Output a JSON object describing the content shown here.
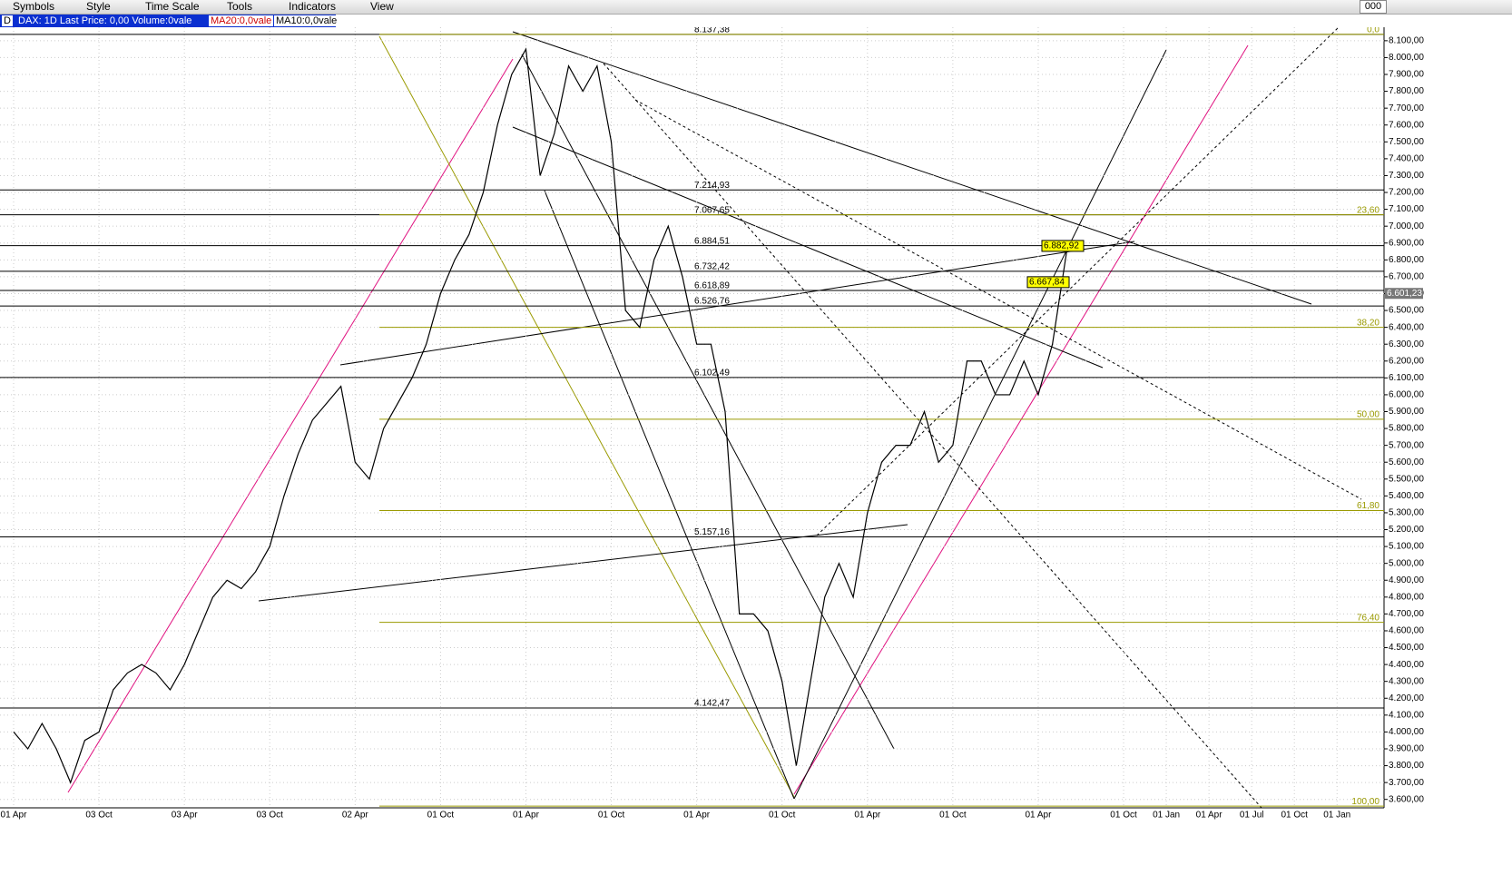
{
  "menu": [
    "Symbols",
    "Style",
    "Time Scale",
    "Tools",
    "Indicators",
    "View"
  ],
  "counter": "000",
  "header": {
    "symbol": "DAX: 1D Last Price: 0,00 Volume:0vale",
    "ma20": "MA20:0,0vale",
    "ma10": "MA10:0,0vale"
  },
  "chart_data": {
    "type": "line",
    "categories": [
      "01 Apr",
      null,
      null,
      null,
      null,
      null,
      "03 Oct",
      null,
      null,
      null,
      null,
      null,
      "03 Apr",
      null,
      null,
      null,
      null,
      null,
      "03 Oct",
      null,
      null,
      null,
      null,
      null,
      "02 Apr",
      null,
      null,
      null,
      null,
      null,
      "01 Oct",
      null,
      null,
      null,
      null,
      null,
      "01 Apr",
      null,
      null,
      null,
      null,
      null,
      "01 Oct",
      null,
      null,
      null,
      null,
      null,
      "01 Apr",
      null,
      null,
      null,
      null,
      null,
      "01 Oct",
      null,
      null,
      null,
      null,
      null,
      "01 Apr",
      null,
      null,
      null,
      null,
      null,
      "01 Oct",
      null,
      null,
      null,
      null,
      null,
      "01 Apr",
      null,
      null,
      null,
      null,
      null,
      "01 Oct",
      null,
      null,
      "01 Jan",
      null,
      null,
      "01 Apr",
      null,
      null,
      "01 Jul",
      null,
      null,
      "01 Oct",
      null,
      null,
      "01 Jan"
    ],
    "series": [
      {
        "color": "#000000",
        "values": [
          4000,
          3900,
          4050,
          3900,
          3700,
          3950,
          4000,
          4250,
          4350,
          4400,
          4350,
          4250,
          4400,
          4600,
          4800,
          4900,
          4850,
          4950,
          5100,
          5400,
          5650,
          5850,
          5950,
          6050,
          5600,
          5500,
          5800,
          5950,
          6100,
          6300,
          6600,
          6800,
          6950,
          7200,
          7600,
          7900,
          8050,
          7300,
          7550,
          7950,
          7800,
          7950,
          7500,
          6500,
          6400,
          6800,
          7000,
          6700,
          6300,
          6300,
          5900,
          4700,
          4700,
          4600,
          4300,
          3800,
          4300,
          4800,
          5000,
          4800,
          5300,
          5600,
          5700,
          5700,
          5900,
          5600,
          5700,
          6200,
          6200,
          6000,
          6000,
          6200,
          6000,
          6300,
          6850,
          null,
          null,
          null,
          null,
          null,
          null,
          null,
          null,
          null,
          null,
          null,
          null,
          null,
          null,
          null,
          null,
          null,
          null,
          null
        ]
      }
    ],
    "ylim": [
      3550,
      8180
    ],
    "yticks": [
      {
        "value": 3600,
        "label": "3.600,00"
      },
      {
        "value": 3700,
        "label": "3.700,00"
      },
      {
        "value": 3800,
        "label": "3.800,00"
      },
      {
        "value": 3900,
        "label": "3.900,00"
      },
      {
        "value": 4000,
        "label": "4.000,00"
      },
      {
        "value": 4100,
        "label": "4.100,00"
      },
      {
        "value": 4200,
        "label": "4.200,00"
      },
      {
        "value": 4300,
        "label": "4.300,00"
      },
      {
        "value": 4400,
        "label": "4.400,00"
      },
      {
        "value": 4500,
        "label": "4.500,00"
      },
      {
        "value": 4600,
        "label": "4.600,00"
      },
      {
        "value": 4700,
        "label": "4.700,00"
      },
      {
        "value": 4800,
        "label": "4.800,00"
      },
      {
        "value": 4900,
        "label": "4.900,00"
      },
      {
        "value": 5000,
        "label": "5.000,00"
      },
      {
        "value": 5100,
        "label": "5.100,00"
      },
      {
        "value": 5200,
        "label": "5.200,00"
      },
      {
        "value": 5300,
        "label": "5.300,00"
      },
      {
        "value": 5400,
        "label": "5.400,00"
      },
      {
        "value": 5500,
        "label": "5.500,00"
      },
      {
        "value": 5600,
        "label": "5.600,00"
      },
      {
        "value": 5700,
        "label": "5.700,00"
      },
      {
        "value": 5800,
        "label": "5.800,00"
      },
      {
        "value": 5900,
        "label": "5.900,00"
      },
      {
        "value": 6000,
        "label": "6.000,00"
      },
      {
        "value": 6100,
        "label": "6.100,00"
      },
      {
        "value": 6200,
        "label": "6.200,00"
      },
      {
        "value": 6300,
        "label": "6.300,00"
      },
      {
        "value": 6400,
        "label": "6.400,00"
      },
      {
        "value": 6500,
        "label": "6.500,00"
      },
      {
        "value": 6600,
        "label": "6.600,00"
      },
      {
        "value": 6700,
        "label": "6.700,00"
      },
      {
        "value": 6800,
        "label": "6.800,00"
      },
      {
        "value": 6900,
        "label": "6.900,00"
      },
      {
        "value": 7000,
        "label": "7.000,00"
      },
      {
        "value": 7100,
        "label": "7.100,00"
      },
      {
        "value": 7200,
        "label": "7.200,00"
      },
      {
        "value": 7300,
        "label": "7.300,00"
      },
      {
        "value": 7400,
        "label": "7.400,00"
      },
      {
        "value": 7500,
        "label": "7.500,00"
      },
      {
        "value": 7600,
        "label": "7.600,00"
      },
      {
        "value": 7700,
        "label": "7.700,00"
      },
      {
        "value": 7800,
        "label": "7.800,00"
      },
      {
        "value": 7900,
        "label": "7.900,00"
      },
      {
        "value": 8000,
        "label": "8.000,00"
      },
      {
        "value": 8100,
        "label": "8.100,00"
      }
    ],
    "grid": true,
    "levels": [
      {
        "value": 8137.38,
        "label": "8.137,38"
      },
      {
        "value": 7214.93,
        "label": "7.214,93"
      },
      {
        "value": 7067.65,
        "label": "7.067,65"
      },
      {
        "value": 6884.51,
        "label": "6.884,51"
      },
      {
        "value": 6732.42,
        "label": "6.732,42"
      },
      {
        "value": 6618.89,
        "label": "6.618,89"
      },
      {
        "value": 6526.76,
        "label": "6.526,76"
      },
      {
        "value": 6102.49,
        "label": "6.102,49"
      },
      {
        "value": 5157.16,
        "label": "5.157,16"
      },
      {
        "value": 4142.47,
        "label": "4.142,47"
      }
    ],
    "fib": {
      "color": "#9a9a00",
      "levels": [
        {
          "value": 8137.38,
          "label": "0,0"
        },
        {
          "value": 7067.65,
          "label": "23,60"
        },
        {
          "value": 6400,
          "label": "38,20"
        },
        {
          "value": 5855,
          "label": "50,00"
        },
        {
          "value": 5313,
          "label": "61,80"
        },
        {
          "value": 4650,
          "label": "76,40"
        },
        {
          "value": 3560,
          "label": "100,00"
        }
      ]
    },
    "last_price": {
      "value": 6601.23,
      "label": "6.601,23"
    },
    "tags": [
      {
        "value": 6882.92,
        "label": "6.882,92"
      },
      {
        "value": 6667.84,
        "label": "6.667,84"
      }
    ]
  }
}
